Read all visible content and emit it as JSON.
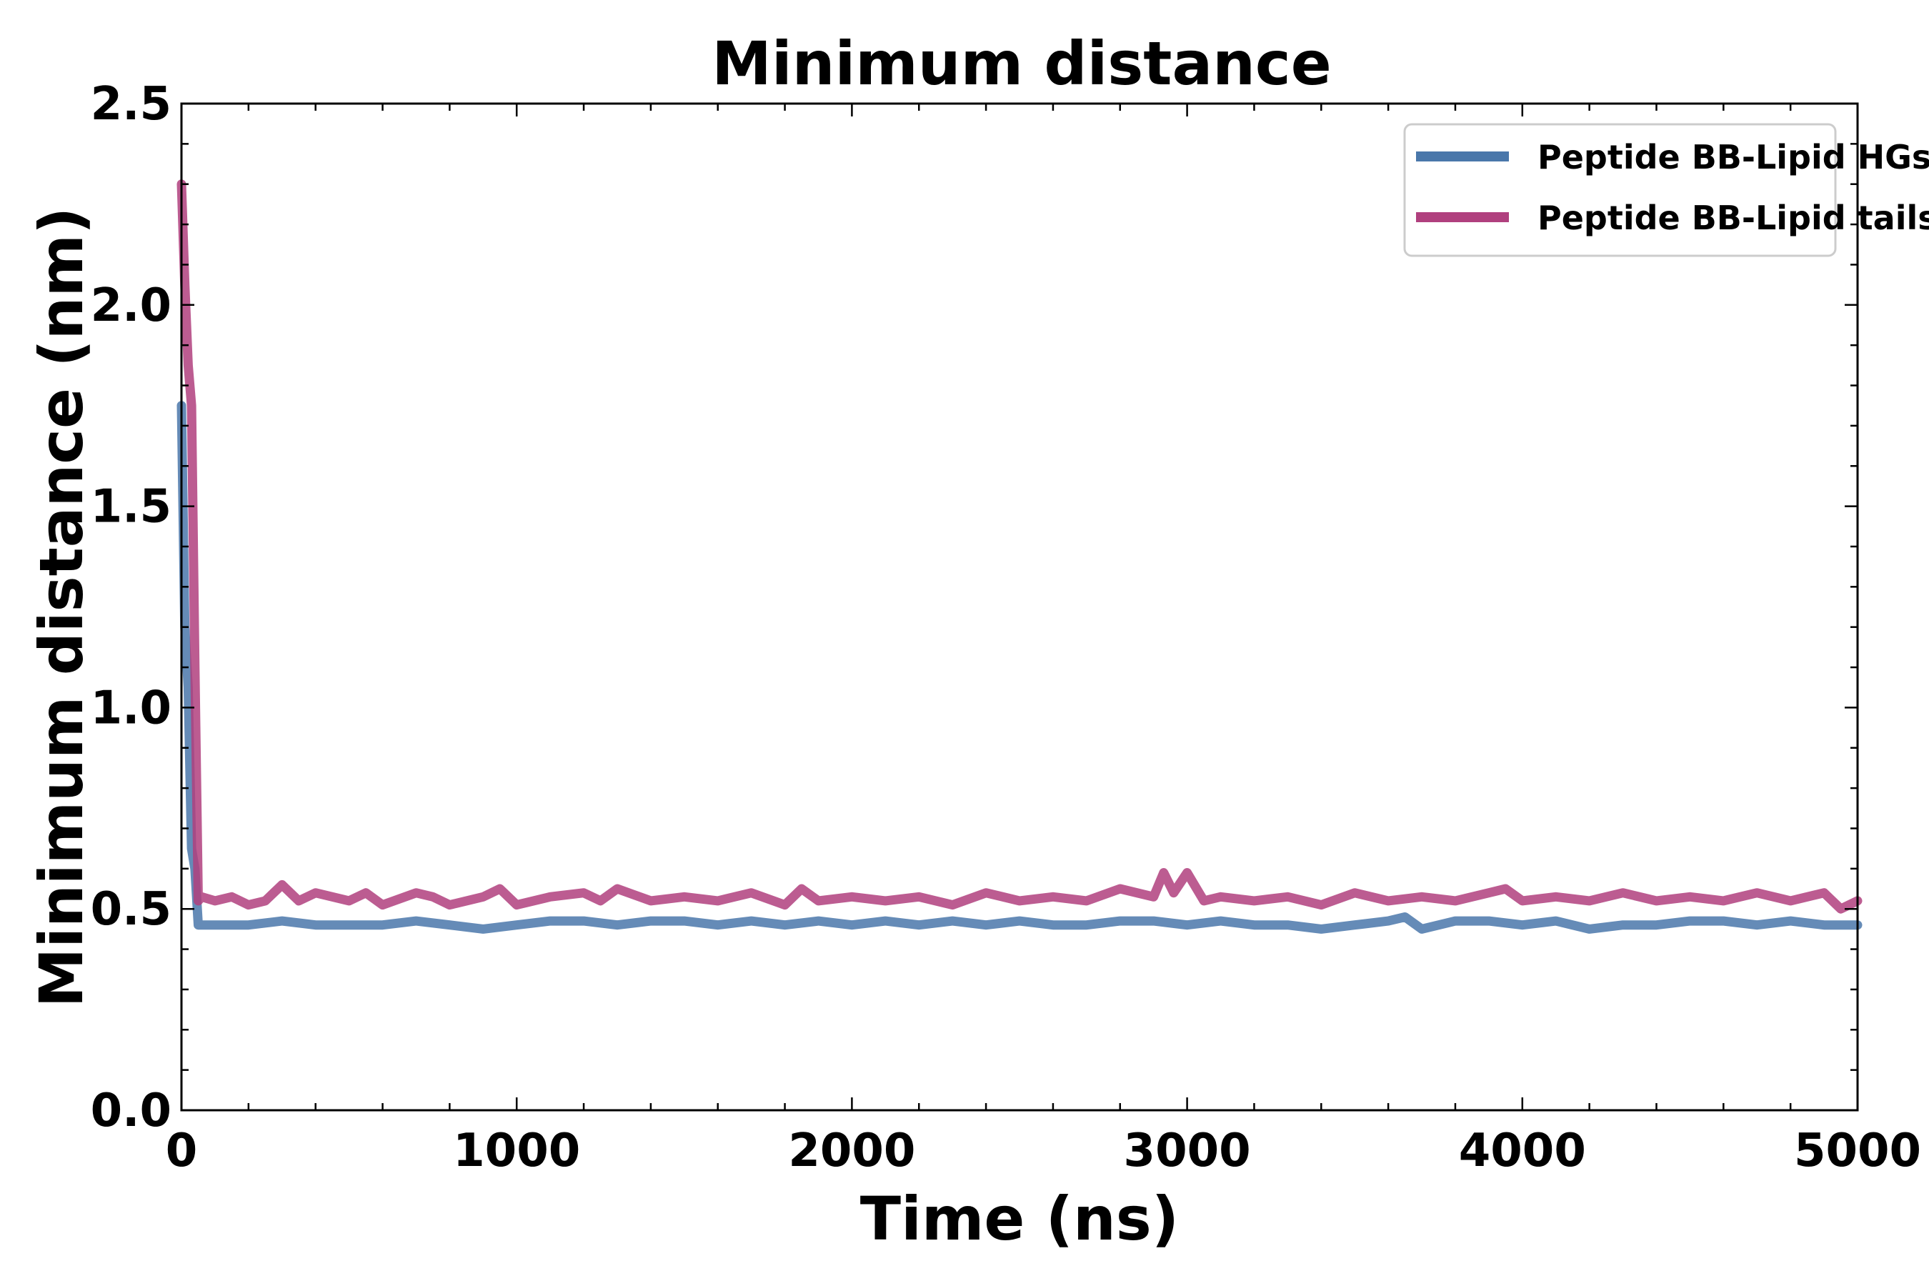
{
  "chart_data": {
    "type": "line",
    "title": "Minimum distance",
    "xlabel": "Time (ns)",
    "ylabel": "Minimum distance (nm)",
    "xlim": [
      0,
      5000
    ],
    "ylim": [
      0,
      2.5
    ],
    "xticks": [
      0,
      1000,
      2000,
      3000,
      4000,
      5000
    ],
    "yticks": [
      0.0,
      0.5,
      1.0,
      1.5,
      2.0,
      2.5
    ],
    "xtick_labels": [
      "0",
      "1000",
      "2000",
      "3000",
      "4000",
      "5000"
    ],
    "ytick_labels": [
      "0.0",
      "0.5",
      "1.0",
      "1.5",
      "2.0",
      "2.5"
    ],
    "x_minor_step": 200,
    "y_minor_step": 0.1,
    "grid": false,
    "legend_position": "top-right",
    "series": [
      {
        "name": "Peptide BB-Lipid HGs",
        "color": "#4a77aa",
        "x": [
          0,
          10,
          20,
          30,
          40,
          50,
          60,
          100,
          200,
          300,
          400,
          500,
          600,
          700,
          800,
          900,
          1000,
          1100,
          1200,
          1300,
          1400,
          1500,
          1600,
          1700,
          1800,
          1900,
          2000,
          2100,
          2200,
          2300,
          2400,
          2500,
          2600,
          2700,
          2800,
          2900,
          3000,
          3100,
          3200,
          3300,
          3400,
          3500,
          3600,
          3650,
          3700,
          3800,
          3900,
          4000,
          4100,
          4200,
          4300,
          4400,
          4500,
          4600,
          4700,
          4800,
          4900,
          5000
        ],
        "values": [
          1.75,
          1.2,
          1.05,
          0.65,
          0.6,
          0.46,
          0.46,
          0.46,
          0.46,
          0.47,
          0.46,
          0.46,
          0.46,
          0.47,
          0.46,
          0.45,
          0.46,
          0.47,
          0.47,
          0.46,
          0.47,
          0.47,
          0.46,
          0.47,
          0.46,
          0.47,
          0.46,
          0.47,
          0.46,
          0.47,
          0.46,
          0.47,
          0.46,
          0.46,
          0.47,
          0.47,
          0.46,
          0.47,
          0.46,
          0.46,
          0.45,
          0.46,
          0.47,
          0.48,
          0.45,
          0.47,
          0.47,
          0.46,
          0.47,
          0.45,
          0.46,
          0.46,
          0.47,
          0.47,
          0.46,
          0.47,
          0.46,
          0.46
        ]
      },
      {
        "name": "Peptide BB-Lipid tails",
        "color": "#b0407e",
        "x": [
          0,
          10,
          20,
          30,
          40,
          50,
          60,
          100,
          150,
          200,
          250,
          300,
          350,
          400,
          500,
          550,
          600,
          700,
          750,
          800,
          900,
          950,
          1000,
          1100,
          1200,
          1250,
          1300,
          1400,
          1500,
          1600,
          1700,
          1800,
          1850,
          1900,
          2000,
          2100,
          2200,
          2300,
          2400,
          2500,
          2600,
          2700,
          2800,
          2900,
          2930,
          2960,
          3000,
          3050,
          3100,
          3200,
          3300,
          3400,
          3500,
          3600,
          3700,
          3800,
          3900,
          3950,
          4000,
          4100,
          4200,
          4300,
          4400,
          4500,
          4600,
          4700,
          4800,
          4900,
          4950,
          5000
        ],
        "values": [
          2.3,
          2.05,
          1.85,
          1.75,
          1.1,
          0.52,
          0.53,
          0.52,
          0.53,
          0.51,
          0.52,
          0.56,
          0.52,
          0.54,
          0.52,
          0.54,
          0.51,
          0.54,
          0.53,
          0.51,
          0.53,
          0.55,
          0.51,
          0.53,
          0.54,
          0.52,
          0.55,
          0.52,
          0.53,
          0.52,
          0.54,
          0.51,
          0.55,
          0.52,
          0.53,
          0.52,
          0.53,
          0.51,
          0.54,
          0.52,
          0.53,
          0.52,
          0.55,
          0.53,
          0.59,
          0.54,
          0.59,
          0.52,
          0.53,
          0.52,
          0.53,
          0.51,
          0.54,
          0.52,
          0.53,
          0.52,
          0.54,
          0.55,
          0.52,
          0.53,
          0.52,
          0.54,
          0.52,
          0.53,
          0.52,
          0.54,
          0.52,
          0.54,
          0.5,
          0.52
        ]
      }
    ]
  }
}
